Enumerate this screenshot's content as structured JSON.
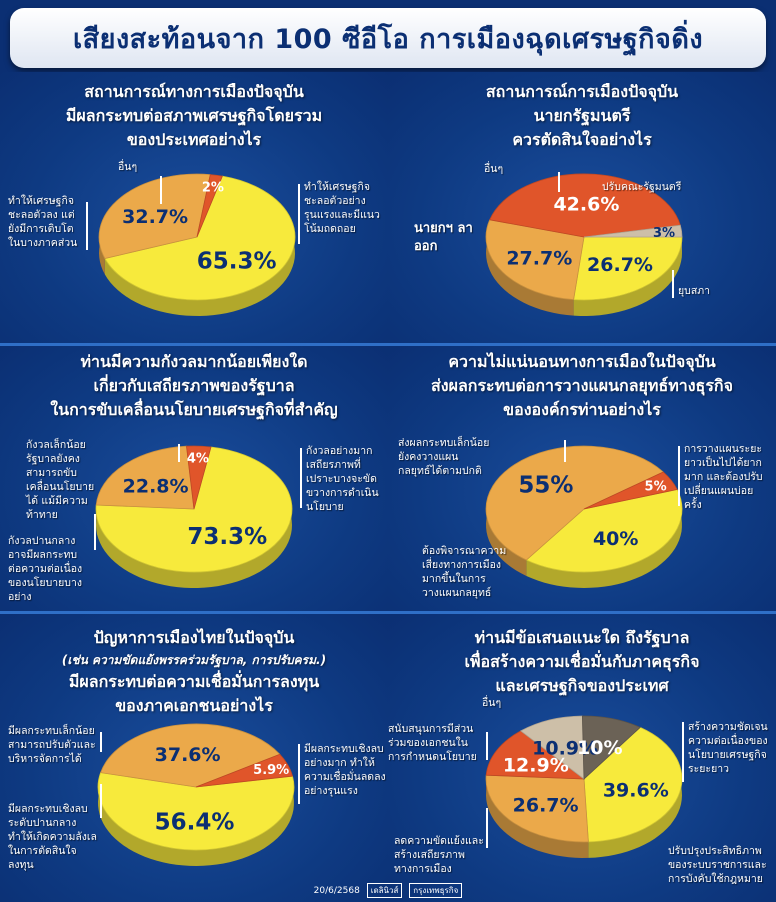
{
  "header": {
    "title": "เสียงสะท้อนจาก 100 ซีอีโอ การเมืองฉุดเศรษฐกิจดิ่ง"
  },
  "footer": {
    "date": "20/6/2568",
    "logo_a": "เดลินิวส์",
    "logo_b": "กรุงเทพธุรกิจ"
  },
  "colors": {
    "yellow": "#f7ea3c",
    "orange": "#eba94a",
    "red": "#e0552a",
    "beige": "#cdbfa8",
    "gray": "#6b6256"
  },
  "chart_data": [
    {
      "type": "pie",
      "title_lines": [
        "สถานการณ์ทางการเมืองปัจจุบัน",
        "มีผลกระทบต่อสภาพเศรษฐกิจโดยรวม",
        "ของประเทศอย่างไร"
      ],
      "slices": [
        {
          "label": "ทำให้เศรษฐกิจชะลอตัวอย่างรุนแรงและมีแนวโน้มถดถอย",
          "value": 65.3,
          "display": "65.3%",
          "color": "yellow"
        },
        {
          "label": "ทำให้เศรษฐกิจชะลอตัวลง แต่ยังมีการเติบโตในบางภาคส่วน",
          "value": 32.7,
          "display": "32.7%",
          "color": "orange"
        },
        {
          "label": "อื่นๆ",
          "value": 2,
          "display": "2%",
          "color": "red"
        }
      ]
    },
    {
      "type": "pie",
      "title_lines": [
        "สถานการณ์การเมืองปัจจุบัน",
        "นายกรัฐมนตรี",
        "ควรตัดสินใจอย่างไร"
      ],
      "slices": [
        {
          "label": "ปรับคณะรัฐมนตรี",
          "value": 26.7,
          "display": "26.7%",
          "color": "yellow"
        },
        {
          "label": "ยุบสภา",
          "value": 27.7,
          "display": "27.7%",
          "color": "orange"
        },
        {
          "label": "นายกฯ ลาออก",
          "value": 42.6,
          "display": "42.6%",
          "color": "red"
        },
        {
          "label": "อื่นๆ",
          "value": 3,
          "display": "3%",
          "color": "beige"
        }
      ]
    },
    {
      "type": "pie",
      "title_lines": [
        "ท่านมีความกังวลมากน้อยเพียงใด",
        "เกี่ยวกับเสถียรภาพของรัฐบาล",
        "ในการขับเคลื่อนนโยบายเศรษฐกิจที่สำคัญ"
      ],
      "slices": [
        {
          "label": "กังวลอย่างมาก เสถียรภาพที่เปราะบางจะขัดขวางการดำเนินนโยบาย",
          "value": 73.3,
          "display": "73.3%",
          "color": "yellow"
        },
        {
          "label": "กังวลปานกลาง อาจมีผลกระทบต่อความต่อเนื่องของนโยบายบางอย่าง",
          "value": 22.8,
          "display": "22.8%",
          "color": "orange"
        },
        {
          "label": "กังวลเล็กน้อย รัฐบาลยังคงสามารถขับเคลื่อนนโยบายได้ แม้มีความท้าทาย",
          "value": 4,
          "display": "4%",
          "color": "red"
        }
      ]
    },
    {
      "type": "pie",
      "title_lines": [
        "ความไม่แน่นอนทางการเมืองในปัจจุบัน",
        "ส่งผลกระทบต่อการวางแผนกลยุทธ์ทางธุรกิจ",
        "ขององค์กรท่านอย่างไร"
      ],
      "slices": [
        {
          "label": "การวางแผนระยะยาวเป็นไปได้ยากมาก และต้องปรับเปลี่ยนแผนบ่อยครั้ง",
          "value": 40,
          "display": "40%",
          "color": "yellow"
        },
        {
          "label": "ต้องพิจารณาความเสี่ยงทางการเมืองมากขึ้นในการวางแผนกลยุทธ์",
          "value": 55,
          "display": "55%",
          "color": "orange"
        },
        {
          "label": "ส่งผลกระทบเล็กน้อย ยังคงวางแผนกลยุทธ์ได้ตามปกติ",
          "value": 5,
          "display": "5%",
          "color": "red"
        }
      ]
    },
    {
      "type": "pie",
      "title_lines": [
        "ปัญหาการเมืองไทยในปัจจุบัน",
        "(เช่น ความขัดแย้งพรรคร่วมรัฐบาล, การปรับครม.)",
        "มีผลกระทบต่อความเชื่อมั่นการลงทุน",
        "ของภาคเอกชนอย่างไร"
      ],
      "slices": [
        {
          "label": "มีผลกระทบเชิงลบอย่างมาก ทำให้ความเชื่อมั่นลดลงอย่างรุนแรง",
          "value": 56.4,
          "display": "56.4%",
          "color": "yellow"
        },
        {
          "label": "มีผลกระทบเชิงลบระดับปานกลาง ทำให้เกิดความลังเลในการตัดสินใจลงทุน",
          "value": 37.6,
          "display": "37.6%",
          "color": "orange"
        },
        {
          "label": "มีผลกระทบเล็กน้อย สามารถปรับตัวและบริหารจัดการได้",
          "value": 5.9,
          "display": "5.9%",
          "color": "red"
        }
      ]
    },
    {
      "type": "pie",
      "title_lines": [
        "ท่านมีข้อเสนอแนะใด ถึงรัฐบาล",
        "เพื่อสร้างความเชื่อมั่นกับภาคธุรกิจ",
        "และเศรษฐกิจของประเทศ"
      ],
      "slices": [
        {
          "label": "สร้างความชัดเจนความต่อเนื่องของนโยบายเศรษฐกิจระยะยาว",
          "value": 39.6,
          "display": "39.6%",
          "color": "yellow"
        },
        {
          "label": "ปรับปรุงประสิทธิภาพของระบบราชการและการบังคับใช้กฎหมาย",
          "value": 26.7,
          "display": "26.7%",
          "color": "orange"
        },
        {
          "label": "ลดความขัดแย้งและสร้างเสถียรภาพทางการเมือง",
          "value": 12.9,
          "display": "12.9%",
          "color": "red"
        },
        {
          "label": "สนับสนุนการมีส่วนร่วมของเอกชนในการกำหนดนโยบาย",
          "value": 10.9,
          "display": "10.9%",
          "color": "beige"
        },
        {
          "label": "อื่นๆ",
          "value": 10,
          "display": "10%",
          "color": "gray"
        }
      ]
    }
  ]
}
